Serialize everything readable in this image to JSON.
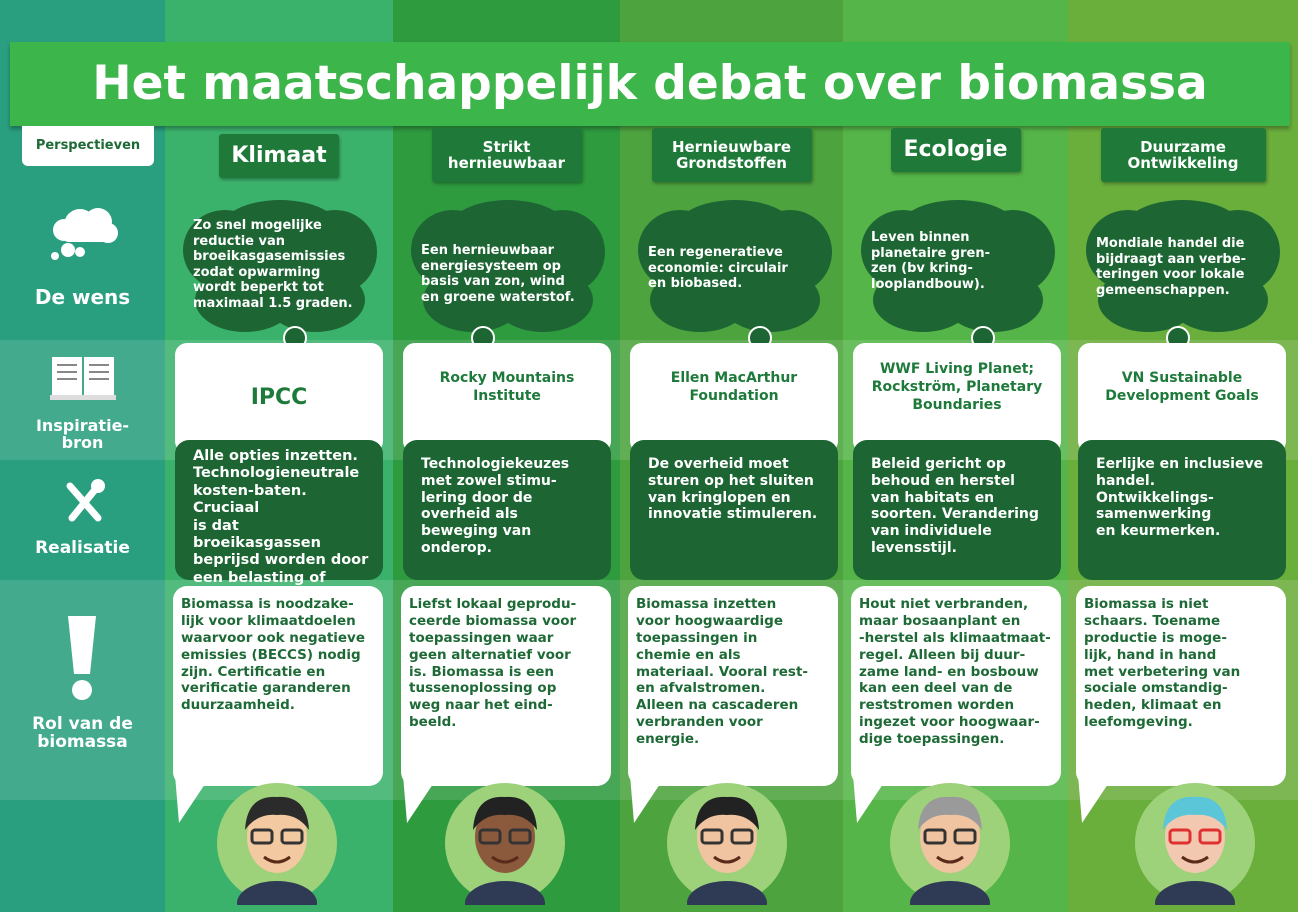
{
  "title": "Het maatschappelijk debat over biomassa",
  "row_labels": {
    "perspectives": "Perspectieven",
    "wish": "De wens",
    "inspiration": "Inspiratie-\nbron",
    "realization": "Realisatie",
    "role": "Rol van de\nbiomassa"
  },
  "columns": [
    {
      "perspective": "Klimaat",
      "wish": "Zo snel mogelijke\nreductie van\nbroeikasgasemissies\nzodat opwarming\nwordt beperkt tot\nmaximaal 1.5 graden.",
      "source": "IPCC",
      "realization": "Alle opties inzetten.\nTechnologieneutrale\nkosten-baten. Cruciaal\nis dat broeikasgassen\nbeprijsd worden door\neen belasting of\nhandelssysteem.",
      "role": "Biomassa is noodzake-\nlijk voor klimaatdoelen\nwaarvoor ook negatieve\nemissies (BECCS) nodig\nzijn. Certificatie en\nverificatie garanderen\nduurzaamheid."
    },
    {
      "perspective": "Strikt\nhernieuwbaar",
      "wish": "Een hernieuwbaar\nenergiesysteem op\nbasis van zon, wind\nen groene waterstof.",
      "source": "Rocky Mountains\nInstitute",
      "realization": "Technologiekeuzes\nmet zowel stimu-\nlering door de\noverheid als\nbeweging van\nonderop.",
      "role": "Liefst lokaal geprodu-\nceerde biomassa voor\ntoepassingen waar\ngeen alternatief voor\nis. Biomassa is een\ntussenoplossing op\nweg naar het eind-\nbeeld."
    },
    {
      "perspective": "Hernieuwbare\nGrondstoffen",
      "wish": "Een regeneratieve\neconomie: circulair\nen biobased.",
      "source": "Ellen MacArthur\nFoundation",
      "realization": "De overheid moet\nsturen op het sluiten\nvan kringlopen en\ninnovatie stimuleren.",
      "role": "Biomassa inzetten\nvoor hoogwaardige\ntoepassingen in\nchemie en als\nmateriaal. Vooral rest-\nen afvalstromen.\nAlleen na cascaderen\nverbranden voor\nenergie."
    },
    {
      "perspective": "Ecologie",
      "wish": "Leven binnen\nplanetaire gren-\nzen (bv kring-\nlooplandbouw).",
      "source": "WWF Living Planet;\nRockström, Planetary\nBoundaries",
      "realization": "Beleid gericht op\nbehoud en herstel\nvan habitats en\nsoorten. Verandering\nvan individuele\nlevensstijl.",
      "role": "Hout niet verbranden,\nmaar bosaanplant en\n-herstel als klimaatmaat-\nregel. Alleen bij duur-\nzame land- en bosbouw\nkan een deel van de\nreststromen worden\ningezet voor hoogwaar-\ndige toepassingen."
    },
    {
      "perspective": "Duurzame\nOntwikkeling",
      "wish": "Mondiale handel die\nbijdraagt aan verbe-\nteringen voor lokale\ngemeenschappen.",
      "source": "VN Sustainable\nDevelopment Goals",
      "realization": "Eerlijke en inclusieve\nhandel.\nOntwikkelings-\nsamenwerking\nen keurmerken.",
      "role": "Biomassa is niet\nschaars. Toename\nproductie is moge-\nlijk, hand in hand\nmet verbetering van\nsociale omstandig-\nheden, klimaat en\nleefomgeving."
    }
  ]
}
